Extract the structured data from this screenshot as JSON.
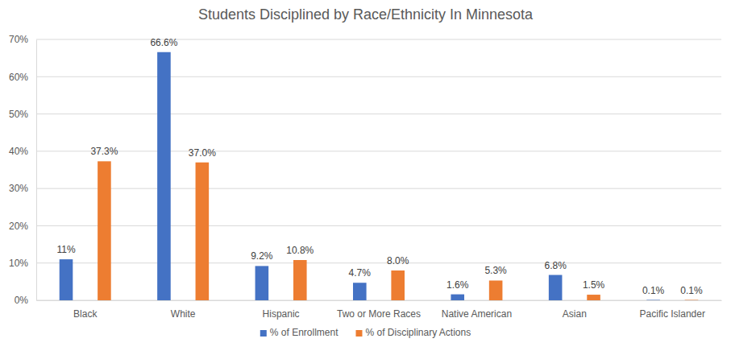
{
  "chart_data": {
    "type": "bar",
    "title": "Students Disciplined by Race/Ethnicity In Minnesota",
    "categories": [
      "Black",
      "White",
      "Hispanic",
      "Two or More Races",
      "Native American",
      "Asian",
      "Pacific Islander"
    ],
    "series": [
      {
        "name": "% of Enrollment",
        "color": "#4472c4",
        "values": [
          11,
          66.6,
          9.2,
          4.7,
          1.6,
          6.8,
          0.1
        ],
        "value_labels": [
          "11%",
          "66.6%",
          "9.2%",
          "4.7%",
          "1.6%",
          "6.8%",
          "0.1%"
        ]
      },
      {
        "name": "% of Disciplinary Actions",
        "color": "#ed7d31",
        "values": [
          37.3,
          37.0,
          10.8,
          8.0,
          5.3,
          1.5,
          0.1
        ],
        "value_labels": [
          "37.3%",
          "37.0%",
          "10.8%",
          "8.0%",
          "5.3%",
          "1.5%",
          "0.1%"
        ]
      }
    ],
    "ylim": [
      0,
      70
    ],
    "yticks": [
      {
        "value": 0,
        "label": "0%"
      },
      {
        "value": 10,
        "label": "10%"
      },
      {
        "value": 20,
        "label": "20%"
      },
      {
        "value": 30,
        "label": "30%"
      },
      {
        "value": 40,
        "label": "40%"
      },
      {
        "value": 50,
        "label": "50%"
      },
      {
        "value": 60,
        "label": "60%"
      },
      {
        "value": 70,
        "label": "70%"
      }
    ],
    "grid": true,
    "legend": "bottom",
    "data_labels": true
  }
}
